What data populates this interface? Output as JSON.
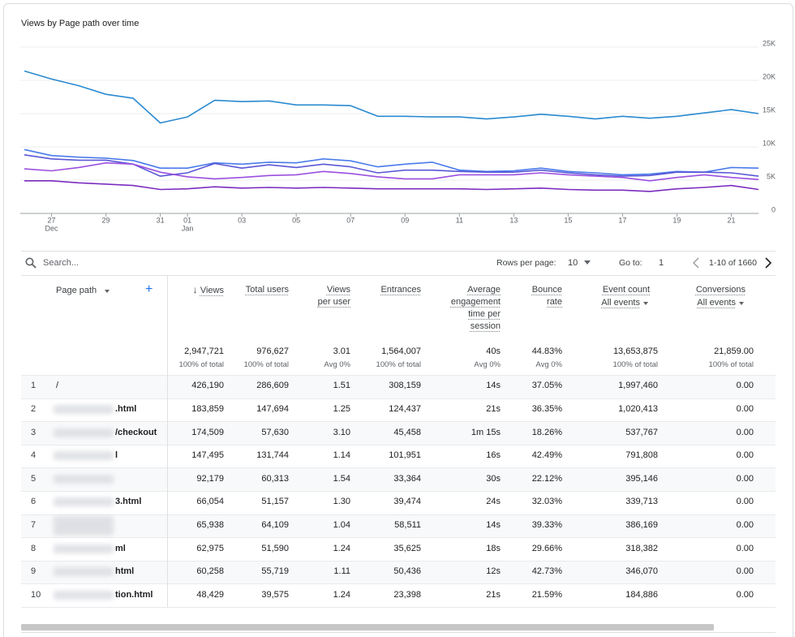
{
  "chart_data": {
    "type": "line",
    "title": "Views by Page path over time",
    "categories": [
      null,
      "27",
      null,
      "29",
      null,
      "31",
      "01",
      null,
      "03",
      null,
      "05",
      null,
      "07",
      null,
      "09",
      null,
      "11",
      null,
      "13",
      null,
      "15",
      null,
      "17",
      null,
      "19",
      null,
      "21",
      null
    ],
    "category_months": [
      null,
      "Dec",
      null,
      null,
      null,
      null,
      "Jan",
      null,
      null,
      null,
      null,
      null,
      null,
      null,
      null,
      null,
      null,
      null,
      null,
      null,
      null,
      null,
      null,
      null,
      null,
      null,
      null,
      null
    ],
    "series": [
      {
        "color": "#2a8ad0",
        "values": [
          21400,
          20200,
          19200,
          17900,
          17300,
          13600,
          14500,
          17000,
          16800,
          16900,
          16300,
          16300,
          16200,
          14600,
          14600,
          14500,
          14500,
          14200,
          14500,
          14900,
          14600,
          14200,
          14600,
          14300,
          14600,
          15100,
          15600,
          15000
        ]
      },
      {
        "color": "#4a7bea",
        "values": [
          9600,
          8700,
          8450,
          8300,
          7950,
          6800,
          6800,
          7600,
          7400,
          7700,
          7600,
          8200,
          7900,
          7000,
          7400,
          7700,
          6500,
          6300,
          6400,
          6800,
          6300,
          6100,
          5800,
          5900,
          6300,
          6200,
          6900,
          6800
        ]
      },
      {
        "color": "#5a58d6",
        "values": [
          8800,
          8200,
          8000,
          8000,
          7400,
          5600,
          6100,
          7500,
          6800,
          7300,
          6900,
          7400,
          7000,
          6100,
          6500,
          6500,
          6300,
          6200,
          6200,
          6500,
          6100,
          5800,
          5600,
          5700,
          6200,
          6200,
          6100,
          5600
        ]
      },
      {
        "color": "#9b4fdf",
        "values": [
          6700,
          6400,
          6900,
          7600,
          7400,
          6200,
          5500,
          5200,
          5400,
          5700,
          5800,
          6300,
          6000,
          5500,
          5200,
          5200,
          5800,
          5800,
          5800,
          6100,
          5800,
          5600,
          5400,
          4900,
          5400,
          5800,
          5400,
          5100
        ]
      },
      {
        "color": "#7b2cbf",
        "values": [
          4900,
          4900,
          4600,
          4400,
          4200,
          3600,
          3700,
          4000,
          3800,
          3900,
          3800,
          3900,
          3800,
          3700,
          3700,
          3700,
          3700,
          3600,
          3700,
          3800,
          3600,
          3500,
          3500,
          3300,
          3700,
          3900,
          4200,
          3600
        ]
      }
    ],
    "ylim": [
      0,
      25000
    ],
    "yticks": [
      0,
      {
        "value": 5000,
        "label": "5K"
      },
      {
        "value": 10000,
        "label": "10K"
      },
      {
        "value": 15000,
        "label": "15K"
      },
      {
        "value": 20000,
        "label": "20K"
      },
      {
        "value": 25000,
        "label": "25K"
      }
    ],
    "grid": true
  },
  "table": {
    "search_placeholder": "Search...",
    "rows_per_page_label": "Rows per page:",
    "rows_per_page": "10",
    "goto_label": "Go to:",
    "goto_value": "1",
    "pagination": "1-10 of 1660",
    "columns": [
      {
        "name": "Page path"
      },
      {
        "name": "Views"
      },
      {
        "name": "Total users"
      },
      {
        "name": "Views per user"
      },
      {
        "name": "Entrances"
      },
      {
        "name": "Average engagement time per session"
      },
      {
        "name": "Bounce rate"
      },
      {
        "name": "Event count",
        "filter": "All events"
      },
      {
        "name": "Conversions",
        "filter": "All events"
      }
    ],
    "totals": [
      {
        "value": "2,947,721",
        "note": "100% of total"
      },
      {
        "value": "976,627",
        "note": "100% of total"
      },
      {
        "value": "3.01",
        "note": "Avg 0%"
      },
      {
        "value": "1,564,007",
        "note": "100% of total"
      },
      {
        "value": "40s",
        "note": "Avg 0%"
      },
      {
        "value": "44.83%",
        "note": "Avg 0%"
      },
      {
        "value": "13,653,875",
        "note": "100% of total"
      },
      {
        "value": "21,859.00",
        "note": "100% of total"
      }
    ],
    "rows": [
      [
        "1",
        "/",
        "426,190",
        "286,609",
        "1.51",
        "308,159",
        "14s",
        "37.05%",
        "1,997,460",
        "0.00"
      ],
      [
        "2",
        ".html",
        "183,859",
        "147,694",
        "1.25",
        "124,437",
        "21s",
        "36.35%",
        "1,020,413",
        "0.00"
      ],
      [
        "3",
        "/checkout",
        "174,509",
        "57,630",
        "3.10",
        "45,458",
        "1m 15s",
        "18.26%",
        "537,767",
        "0.00"
      ],
      [
        "4",
        "l",
        "147,495",
        "131,744",
        "1.14",
        "101,951",
        "16s",
        "42.49%",
        "791,808",
        "0.00"
      ],
      [
        "5",
        null,
        "92,179",
        "60,313",
        "1.54",
        "33,364",
        "30s",
        "22.12%",
        "395,146",
        "0.00"
      ],
      [
        "6",
        "3.html",
        "66,054",
        "51,157",
        "1.30",
        "39,474",
        "24s",
        "32.03%",
        "339,713",
        "0.00"
      ],
      [
        "7",
        null,
        "65,938",
        "64,109",
        "1.04",
        "58,511",
        "14s",
        "39.33%",
        "386,169",
        "0.00"
      ],
      [
        "8",
        "ml",
        "62,975",
        "51,590",
        "1.24",
        "35,625",
        "18s",
        "29.66%",
        "318,382",
        "0.00"
      ],
      [
        "9",
        "html",
        "60,258",
        "55,719",
        "1.11",
        "50,436",
        "12s",
        "42.73%",
        "346,070",
        "0.00"
      ],
      [
        "10",
        "tion.html",
        "48,429",
        "39,575",
        "1.24",
        "23,398",
        "21s",
        "21.59%",
        "184,886",
        "0.00"
      ]
    ]
  }
}
